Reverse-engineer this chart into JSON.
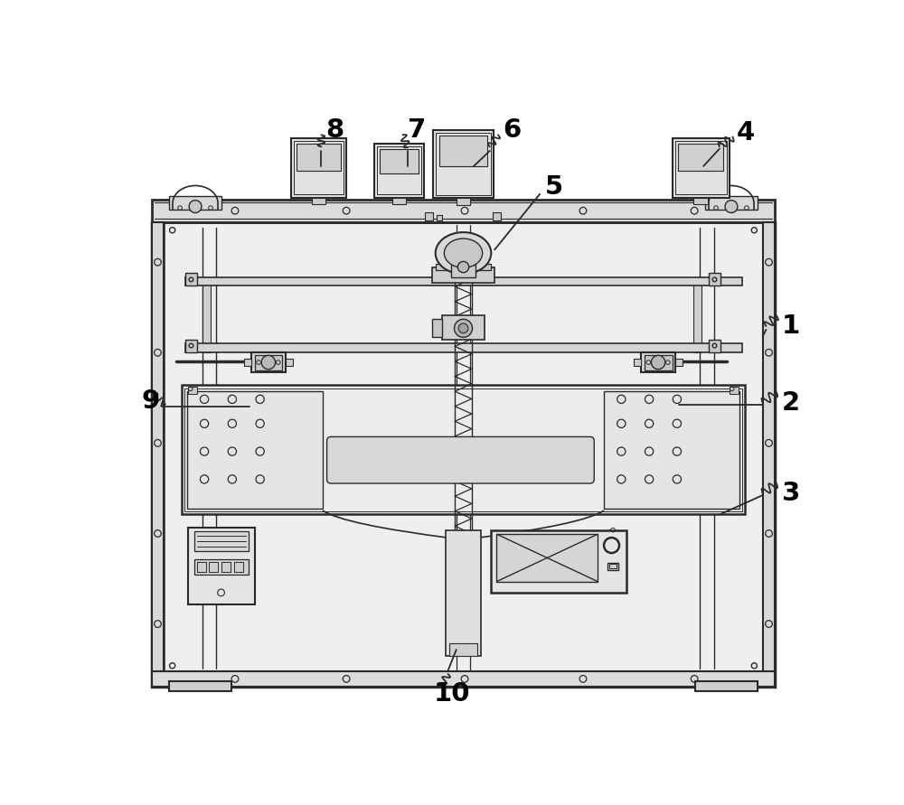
{
  "bg_color": "#ffffff",
  "lc": "#2a2a2a",
  "fc_outer": "#f0f0f0",
  "fc_panel": "#e8e8e8",
  "fc_mid": "#d8d8d8",
  "fc_dark": "#c0c0c0",
  "label_color": "#000000"
}
